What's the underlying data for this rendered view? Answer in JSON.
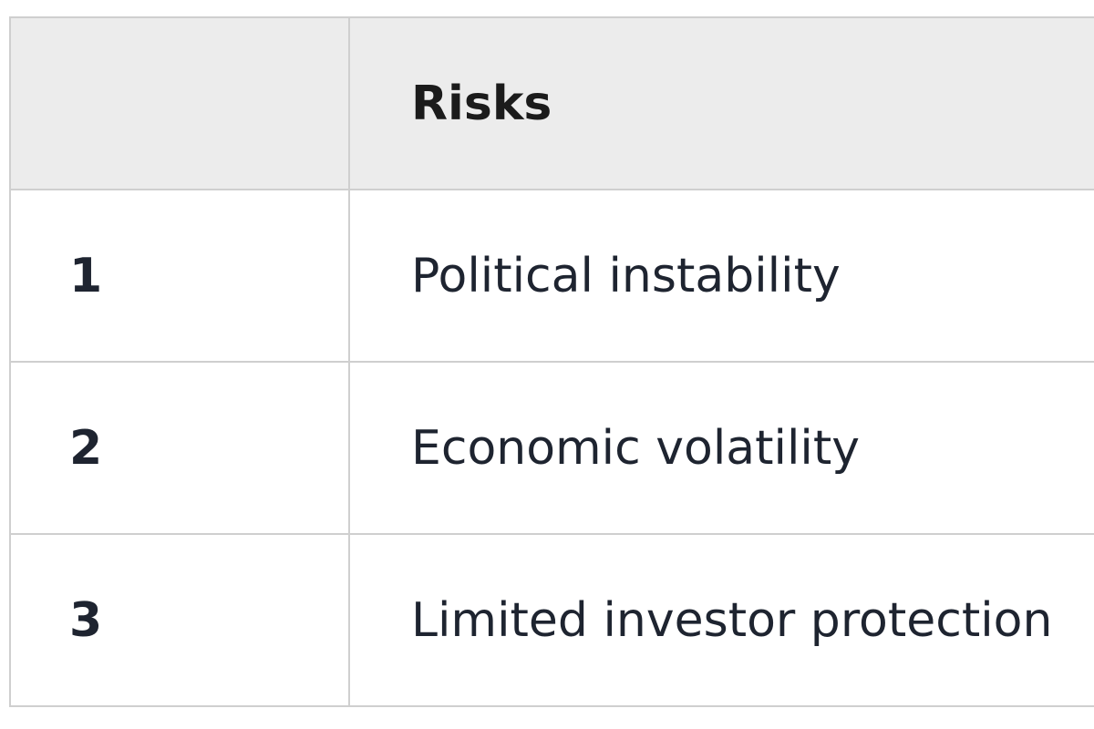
{
  "table": {
    "headers": [
      "",
      "Risks"
    ],
    "rows": [
      {
        "num": "1",
        "risk": "Political instability"
      },
      {
        "num": "2",
        "risk": "Economic volatility"
      },
      {
        "num": "3",
        "risk": "Limited investor protection"
      }
    ]
  }
}
